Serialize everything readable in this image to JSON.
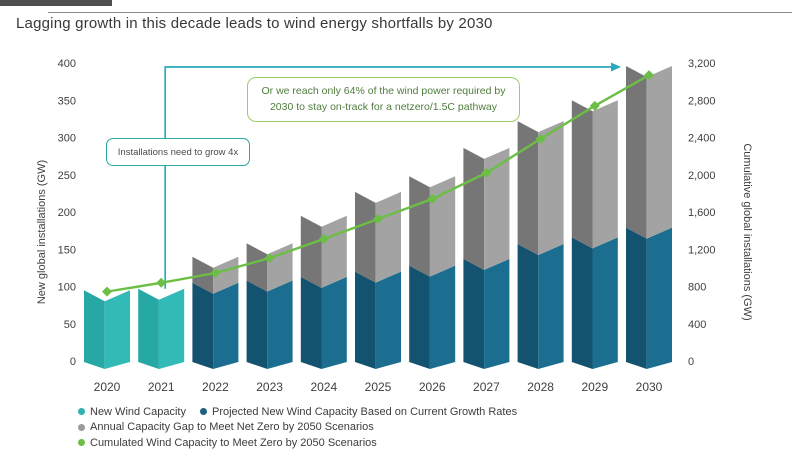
{
  "page": {
    "title": "Lagging growth in this decade leads to wind energy shortfalls by 2030"
  },
  "annotations": {
    "grow_box": "Installations need to grow 4x",
    "reach_box": "Or we reach only 64% of the wind power required by 2030 to stay on-track for a netzero/1.5C pathway"
  },
  "chart_data": {
    "type": "bar",
    "subtype": "stacked-folded-3d-bars-with-line",
    "title": "Lagging growth in this decade leads to wind energy shortfalls by 2030",
    "categories": [
      "2020",
      "2021",
      "2022",
      "2023",
      "2024",
      "2025",
      "2026",
      "2027",
      "2028",
      "2029",
      "2030"
    ],
    "series": [
      {
        "name": "New Wind Capacity",
        "type": "bar",
        "axis": "left",
        "legend_color": "#2eb4b0",
        "color_left": "#26a8a5",
        "color_right": "#31bab6",
        "values": [
          95,
          97,
          0,
          0,
          0,
          0,
          0,
          0,
          0,
          0,
          0
        ]
      },
      {
        "name": "Projected New Wind Capacity Based on Current Growth Rates",
        "type": "bar",
        "axis": "left",
        "legend_color": "#1b607e",
        "color_left": "#14536f",
        "color_right": "#1b6e90",
        "values": [
          0,
          0,
          105,
          108,
          113,
          120,
          128,
          137,
          157,
          166,
          179
        ]
      },
      {
        "name": "Annual Capacity Gap to Meet Net Zero by 2050 Scenarios",
        "type": "bar",
        "axis": "left",
        "legend_color": "#9b9b9b",
        "color_left": "#767676",
        "color_right": "#a3a3a3",
        "values": [
          0,
          0,
          35,
          50,
          82,
          107,
          120,
          149,
          165,
          184,
          217
        ]
      },
      {
        "name": "Cumulated Wind Capacity to Meet Zero by 2050 Scenarios",
        "type": "line",
        "axis": "right",
        "legend_color": "#6cbe45",
        "color": "#6cbe45",
        "values": [
          745,
          840,
          945,
          1105,
          1310,
          1525,
          1740,
          2020,
          2385,
          2740,
          3070
        ]
      }
    ],
    "left_axis": {
      "label": "New global installations (GW)",
      "range": [
        0,
        400
      ],
      "ticks": [
        0,
        50,
        100,
        150,
        200,
        250,
        300,
        350,
        400
      ]
    },
    "right_axis": {
      "label": "Cumulative global installations (GW)",
      "range": [
        0,
        3200
      ],
      "ticks": [
        "0",
        "400",
        "800",
        "1,200",
        "1,600",
        "2,000",
        "2,400",
        "2,800",
        "3,200"
      ]
    },
    "grid": false,
    "legend_position": "bottom"
  },
  "colors": {
    "arrow_teal": "#2aa9bf",
    "axis_text": "#3f3f3f",
    "title_text": "#383838"
  }
}
